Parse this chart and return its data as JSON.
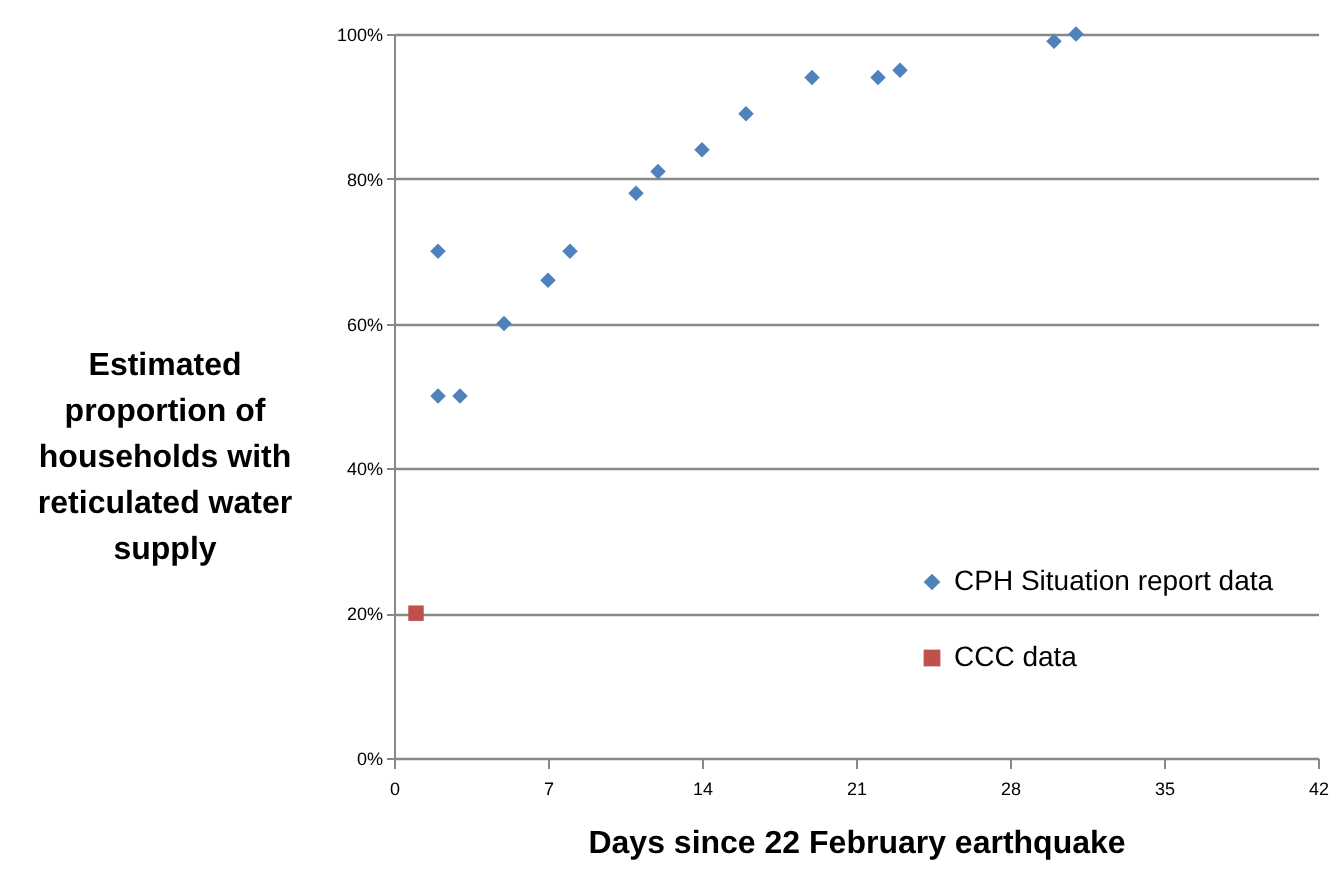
{
  "chart_data": {
    "type": "scatter",
    "xlabel": "Days since 22 February earthquake",
    "ylabel": "Estimated proportion of households with reticulated water supply",
    "xlim": [
      0,
      42
    ],
    "xticks": [
      0,
      7,
      14,
      21,
      28,
      35,
      42
    ],
    "ylim": [
      0,
      100
    ],
    "yticks": [
      {
        "value": 0,
        "label": "0%"
      },
      {
        "value": 20,
        "label": "20%"
      },
      {
        "value": 40,
        "label": "40%"
      },
      {
        "value": 60,
        "label": "60%"
      },
      {
        "value": 80,
        "label": "80%"
      },
      {
        "value": 100,
        "label": "100%"
      }
    ],
    "grid": "y",
    "legend": "bottom right",
    "series": [
      {
        "name": "CPH Situation report data",
        "color": "#4f81bd",
        "marker": "diamond",
        "x": [
          2,
          2,
          3,
          5,
          7,
          8,
          11,
          12,
          14,
          16,
          19,
          22,
          23,
          30,
          31
        ],
        "values": [
          70,
          50,
          50,
          60,
          66,
          70,
          78,
          81,
          84,
          89,
          94,
          94,
          95,
          99,
          100
        ]
      },
      {
        "name": "CCC data",
        "color": "#c0504d",
        "marker": "square",
        "x": [
          1
        ],
        "values": [
          20
        ]
      }
    ]
  }
}
